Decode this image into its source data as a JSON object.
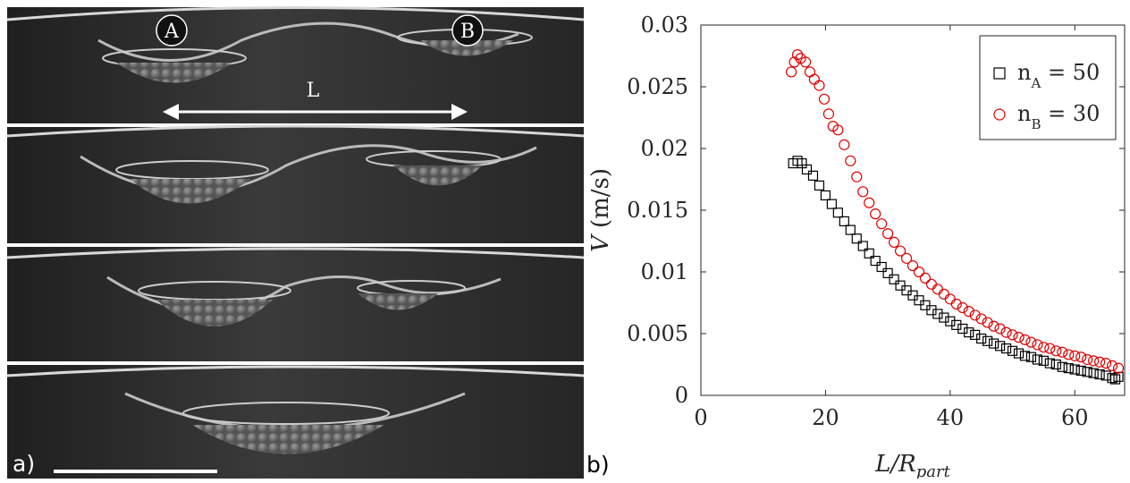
{
  "panel_a": {
    "label": "a)",
    "droplet_a_label": "A",
    "droplet_b_label": "B",
    "distance_label": "L"
  },
  "panel_b": {
    "label": "b)"
  },
  "colors": {
    "series_a": "#000000",
    "series_b": "#e00000",
    "photo_background": "#2a2a2a"
  },
  "chart_data": {
    "type": "scatter",
    "xlabel": "L/R_part",
    "ylabel": "V (m/s)",
    "xlim": [
      0,
      68
    ],
    "ylim": [
      0,
      0.03
    ],
    "x_ticks": [
      "0",
      "20",
      "40",
      "60"
    ],
    "y_ticks": [
      "0",
      "0.005",
      "0.01",
      "0.015",
      "0.02",
      "0.025",
      "0.03"
    ],
    "legend_position": "top-right",
    "grid": false,
    "series": [
      {
        "name": "n_A = 50",
        "legend_base": "n",
        "legend_sub": "A",
        "legend_rest": " = 50",
        "marker": "square",
        "color": "#000000",
        "points": [
          [
            14.8,
            0.0188
          ],
          [
            15.5,
            0.019
          ],
          [
            16.2,
            0.0188
          ],
          [
            17.0,
            0.0183
          ],
          [
            18.0,
            0.0178
          ],
          [
            19.0,
            0.017
          ],
          [
            20.0,
            0.0162
          ],
          [
            21.0,
            0.0155
          ],
          [
            22.0,
            0.0148
          ],
          [
            23.0,
            0.0141
          ],
          [
            24.0,
            0.0134
          ],
          [
            25.0,
            0.0127
          ],
          [
            26.0,
            0.0121
          ],
          [
            27.0,
            0.0115
          ],
          [
            28.0,
            0.0109
          ],
          [
            29.0,
            0.0104
          ],
          [
            30.0,
            0.0099
          ],
          [
            31.0,
            0.0094
          ],
          [
            32.0,
            0.0089
          ],
          [
            33.0,
            0.0085
          ],
          [
            34.0,
            0.0081
          ],
          [
            35.0,
            0.0077
          ],
          [
            36.0,
            0.0073
          ],
          [
            37.0,
            0.0069
          ],
          [
            38.0,
            0.0066
          ],
          [
            39.0,
            0.0063
          ],
          [
            40.0,
            0.006
          ],
          [
            41.0,
            0.0057
          ],
          [
            42.0,
            0.0054
          ],
          [
            43.0,
            0.0051
          ],
          [
            44.0,
            0.0049
          ],
          [
            45.0,
            0.0046
          ],
          [
            46.0,
            0.0044
          ],
          [
            47.0,
            0.0042
          ],
          [
            48.0,
            0.004
          ],
          [
            49.0,
            0.0038
          ],
          [
            50.0,
            0.0036
          ],
          [
            51.0,
            0.0034
          ],
          [
            52.0,
            0.0032
          ],
          [
            53.0,
            0.0031
          ],
          [
            54.0,
            0.0029
          ],
          [
            55.0,
            0.0028
          ],
          [
            56.0,
            0.0026
          ],
          [
            57.0,
            0.0025
          ],
          [
            58.0,
            0.0023
          ],
          [
            59.0,
            0.0022
          ],
          [
            60.0,
            0.0021
          ],
          [
            61.0,
            0.002
          ],
          [
            62.0,
            0.0019
          ],
          [
            63.0,
            0.0018
          ],
          [
            64.0,
            0.0017
          ],
          [
            65.0,
            0.0016
          ],
          [
            66.0,
            0.0014
          ],
          [
            66.5,
            0.0013
          ],
          [
            67.0,
            0.0015
          ]
        ]
      },
      {
        "name": "n_B = 30",
        "legend_base": "n",
        "legend_sub": "B",
        "legend_rest": " = 30",
        "marker": "circle",
        "color": "#e00000",
        "points": [
          [
            14.5,
            0.0262
          ],
          [
            15.0,
            0.027
          ],
          [
            15.5,
            0.0276
          ],
          [
            16.0,
            0.0273
          ],
          [
            16.8,
            0.027
          ],
          [
            17.5,
            0.0262
          ],
          [
            18.2,
            0.0256
          ],
          [
            19.0,
            0.0251
          ],
          [
            19.8,
            0.024
          ],
          [
            20.5,
            0.0228
          ],
          [
            21.2,
            0.0218
          ],
          [
            22.0,
            0.0215
          ],
          [
            23.0,
            0.0203
          ],
          [
            24.0,
            0.019
          ],
          [
            25.0,
            0.0177
          ],
          [
            26.0,
            0.0165
          ],
          [
            27.0,
            0.0156
          ],
          [
            28.0,
            0.0147
          ],
          [
            29.0,
            0.0139
          ],
          [
            30.0,
            0.0131
          ],
          [
            31.0,
            0.0124
          ],
          [
            32.0,
            0.0117
          ],
          [
            33.0,
            0.0111
          ],
          [
            34.0,
            0.0105
          ],
          [
            35.0,
            0.01
          ],
          [
            36.0,
            0.0095
          ],
          [
            37.0,
            0.009
          ],
          [
            38.0,
            0.0086
          ],
          [
            39.0,
            0.0082
          ],
          [
            40.0,
            0.0078
          ],
          [
            41.0,
            0.0074
          ],
          [
            42.0,
            0.0071
          ],
          [
            43.0,
            0.0068
          ],
          [
            44.0,
            0.0065
          ],
          [
            45.0,
            0.0062
          ],
          [
            46.0,
            0.0059
          ],
          [
            47.0,
            0.0056
          ],
          [
            48.0,
            0.0054
          ],
          [
            49.0,
            0.0051
          ],
          [
            50.0,
            0.0049
          ],
          [
            51.0,
            0.0047
          ],
          [
            52.0,
            0.0045
          ],
          [
            53.0,
            0.0043
          ],
          [
            54.0,
            0.0041
          ],
          [
            55.0,
            0.0039
          ],
          [
            56.0,
            0.0038
          ],
          [
            57.0,
            0.0036
          ],
          [
            58.0,
            0.0035
          ],
          [
            59.0,
            0.0033
          ],
          [
            60.0,
            0.0032
          ],
          [
            61.0,
            0.0031
          ],
          [
            62.0,
            0.0029
          ],
          [
            63.0,
            0.0028
          ],
          [
            64.0,
            0.0027
          ],
          [
            65.0,
            0.0026
          ],
          [
            66.0,
            0.0024
          ],
          [
            67.0,
            0.0022
          ]
        ]
      }
    ]
  }
}
